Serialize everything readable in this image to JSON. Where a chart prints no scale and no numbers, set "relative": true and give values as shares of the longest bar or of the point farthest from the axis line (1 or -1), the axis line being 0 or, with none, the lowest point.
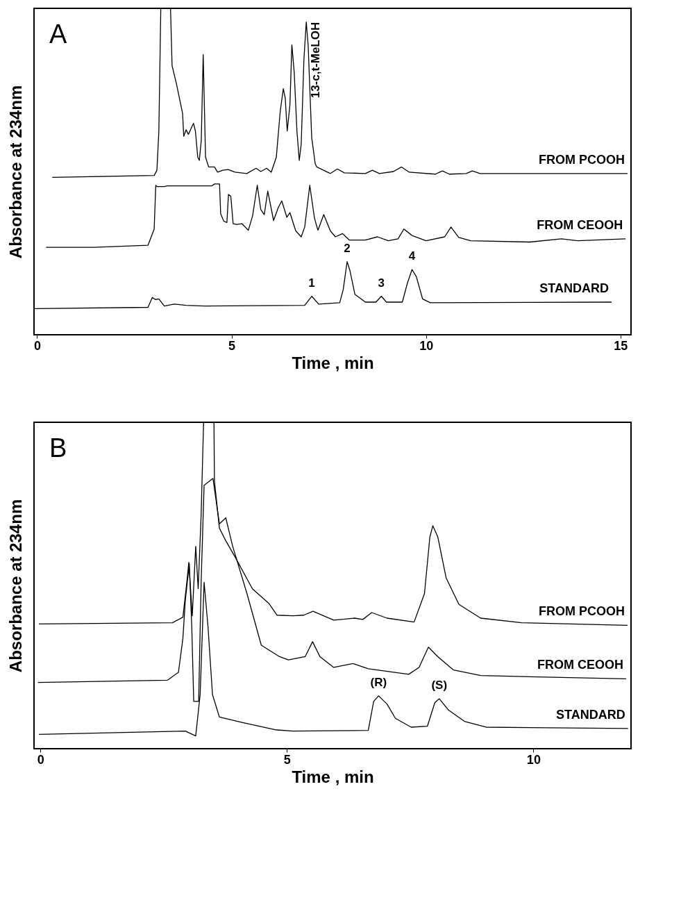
{
  "chart_data": [
    {
      "type": "line",
      "relative": true,
      "xlabel": "Time , min",
      "ylabel": "Absorbance at 234nm",
      "xlim": [
        -0.08,
        15.27
      ],
      "xticks": [
        0,
        5,
        10,
        15
      ],
      "grid": false,
      "legend": false,
      "annotations": [
        "A",
        {
          "text": "13-c,t-MeLOH",
          "x": 6.92,
          "y": 0.958
        },
        {
          "text": "1",
          "x": 7.06,
          "y": 0.118
        },
        {
          "text": "2",
          "x": 7.97,
          "y": 0.224
        },
        {
          "text": "3",
          "x": 8.85,
          "y": 0.118
        },
        {
          "text": "4",
          "x": 9.64,
          "y": 0.2
        }
      ],
      "series": [
        {
          "name": "FROM PCOOH",
          "color": "#000000",
          "x": [
            0.39,
            3.01,
            3.08,
            3.13,
            3.18,
            3.43,
            3.47,
            3.58,
            3.74,
            3.77,
            3.83,
            3.89,
            4.02,
            4.07,
            4.13,
            4.17,
            4.22,
            4.27,
            4.3,
            4.33,
            4.41,
            4.56,
            4.64,
            4.77,
            4.91,
            5.09,
            5.39,
            5.63,
            5.75,
            5.9,
            6.02,
            6.15,
            6.25,
            6.33,
            6.38,
            6.43,
            6.5,
            6.55,
            6.61,
            6.68,
            6.74,
            6.79,
            6.86,
            6.92,
            6.97,
            7.06,
            7.15,
            7.19,
            7.54,
            7.72,
            7.9,
            8.44,
            8.62,
            8.8,
            9.16,
            9.37,
            9.57,
            10.24,
            10.42,
            10.6,
            11.03,
            11.19,
            11.39,
            15.18
          ],
          "values": [
            0.482,
            0.488,
            0.504,
            0.624,
            1.0,
            1.0,
            0.824,
            0.77,
            0.678,
            0.608,
            0.628,
            0.614,
            0.648,
            0.624,
            0.544,
            0.534,
            0.594,
            0.858,
            0.704,
            0.544,
            0.514,
            0.514,
            0.498,
            0.504,
            0.506,
            0.498,
            0.494,
            0.51,
            0.5,
            0.51,
            0.498,
            0.544,
            0.684,
            0.754,
            0.724,
            0.624,
            0.704,
            0.888,
            0.804,
            0.624,
            0.534,
            0.584,
            0.844,
            0.958,
            0.884,
            0.604,
            0.524,
            0.514,
            0.494,
            0.508,
            0.496,
            0.494,
            0.504,
            0.494,
            0.5,
            0.514,
            0.498,
            0.492,
            0.502,
            0.492,
            0.494,
            0.502,
            0.494,
            0.494
          ]
        },
        {
          "name": "FROM CEOOH",
          "color": "#000000",
          "x": [
            0.23,
            1.45,
            2.85,
            3.01,
            3.05,
            3.08,
            3.27,
            3.35,
            4.49,
            4.56,
            4.69,
            4.72,
            4.8,
            4.88,
            4.92,
            4.98,
            5.04,
            5.13,
            5.27,
            5.43,
            5.54,
            5.66,
            5.75,
            5.84,
            5.93,
            6.08,
            6.2,
            6.29,
            6.42,
            6.5,
            6.65,
            6.79,
            6.88,
            7.01,
            7.13,
            7.22,
            7.37,
            7.54,
            7.67,
            7.85,
            8.03,
            8.44,
            8.75,
            9.03,
            9.28,
            9.43,
            9.64,
            10.0,
            10.48,
            10.64,
            10.84,
            11.15,
            12.67,
            13.48,
            13.9,
            15.13
          ],
          "values": [
            0.268,
            0.268,
            0.274,
            0.324,
            0.458,
            0.454,
            0.454,
            0.456,
            0.456,
            0.462,
            0.462,
            0.37,
            0.348,
            0.344,
            0.43,
            0.424,
            0.34,
            0.338,
            0.34,
            0.32,
            0.364,
            0.458,
            0.384,
            0.368,
            0.44,
            0.35,
            0.39,
            0.41,
            0.36,
            0.374,
            0.318,
            0.3,
            0.33,
            0.458,
            0.358,
            0.32,
            0.368,
            0.318,
            0.3,
            0.31,
            0.29,
            0.29,
            0.3,
            0.288,
            0.294,
            0.324,
            0.304,
            0.288,
            0.3,
            0.33,
            0.298,
            0.288,
            0.284,
            0.294,
            0.288,
            0.294
          ]
        },
        {
          "name": "STANDARD",
          "color": "#000000",
          "x": [
            -0.06,
            2.85,
            2.96,
            3.04,
            3.13,
            3.27,
            3.52,
            3.83,
            4.3,
            6.88,
            7.06,
            7.24,
            7.78,
            7.87,
            7.97,
            8.04,
            8.17,
            8.44,
            8.71,
            8.85,
            8.98,
            9.39,
            9.52,
            9.64,
            9.75,
            9.91,
            10.11,
            14.77
          ],
          "values": [
            0.08,
            0.084,
            0.114,
            0.108,
            0.11,
            0.088,
            0.094,
            0.09,
            0.088,
            0.09,
            0.118,
            0.094,
            0.098,
            0.138,
            0.224,
            0.198,
            0.124,
            0.1,
            0.1,
            0.118,
            0.1,
            0.1,
            0.158,
            0.2,
            0.178,
            0.11,
            0.098,
            0.1
          ]
        }
      ]
    },
    {
      "type": "line",
      "relative": true,
      "xlabel": "Time , min",
      "ylabel": "Absorbance at 234nm",
      "xlim": [
        -0.13,
        11.98
      ],
      "xticks": [
        0,
        5,
        10
      ],
      "grid": false,
      "legend": false,
      "annotations": [
        "B",
        {
          "text": "(R)",
          "x": 6.86,
          "y": 0.162
        },
        {
          "text": "(S)",
          "x": 8.09,
          "y": 0.153
        }
      ],
      "series": [
        {
          "name": "FROM PCOOH",
          "color": "#000000",
          "x": [
            -0.03,
            2.68,
            2.89,
            2.97,
            3.01,
            3.08,
            3.15,
            3.2,
            3.26,
            3.31,
            3.52,
            3.53,
            3.63,
            3.76,
            3.95,
            4.3,
            4.64,
            4.8,
            5.12,
            5.34,
            5.53,
            5.95,
            6.37,
            6.54,
            6.72,
            7.03,
            7.58,
            7.79,
            7.9,
            7.96,
            8.06,
            8.23,
            8.49,
            8.93,
            9.76,
            11.91
          ],
          "values": [
            0.382,
            0.386,
            0.403,
            0.51,
            0.571,
            0.407,
            0.62,
            0.49,
            0.716,
            1.0,
            1.0,
            0.82,
            0.676,
            0.637,
            0.587,
            0.49,
            0.444,
            0.409,
            0.407,
            0.409,
            0.421,
            0.394,
            0.4,
            0.396,
            0.417,
            0.4,
            0.388,
            0.475,
            0.649,
            0.683,
            0.649,
            0.523,
            0.442,
            0.4,
            0.386,
            0.378
          ]
        },
        {
          "name": "FROM CEOOH",
          "color": "#000000",
          "x": [
            -0.05,
            2.58,
            2.8,
            2.89,
            2.94,
            3.02,
            3.07,
            3.11,
            3.21,
            3.26,
            3.32,
            3.5,
            3.63,
            3.76,
            3.9,
            4.19,
            4.48,
            4.85,
            5.03,
            5.37,
            5.52,
            5.67,
            5.95,
            6.34,
            6.65,
            7.47,
            7.68,
            7.87,
            8.06,
            8.38,
            8.93,
            11.88
          ],
          "values": [
            0.203,
            0.21,
            0.234,
            0.338,
            0.456,
            0.566,
            0.373,
            0.145,
            0.145,
            0.51,
            0.807,
            0.828,
            0.689,
            0.707,
            0.62,
            0.475,
            0.317,
            0.282,
            0.272,
            0.282,
            0.328,
            0.282,
            0.249,
            0.261,
            0.245,
            0.228,
            0.249,
            0.311,
            0.282,
            0.241,
            0.224,
            0.214
          ]
        },
        {
          "name": "STANDARD",
          "color": "#000000",
          "x": [
            -0.03,
            2.94,
            3.15,
            3.24,
            3.32,
            3.4,
            3.49,
            3.63,
            4.07,
            4.76,
            5.12,
            6.65,
            6.76,
            6.86,
            7.03,
            7.2,
            7.52,
            7.85,
            8.0,
            8.09,
            8.28,
            8.61,
            9.04,
            11.92
          ],
          "values": [
            0.044,
            0.054,
            0.039,
            0.166,
            0.51,
            0.373,
            0.166,
            0.097,
            0.081,
            0.058,
            0.054,
            0.056,
            0.145,
            0.162,
            0.137,
            0.093,
            0.066,
            0.069,
            0.141,
            0.153,
            0.118,
            0.083,
            0.066,
            0.062
          ]
        }
      ]
    }
  ]
}
